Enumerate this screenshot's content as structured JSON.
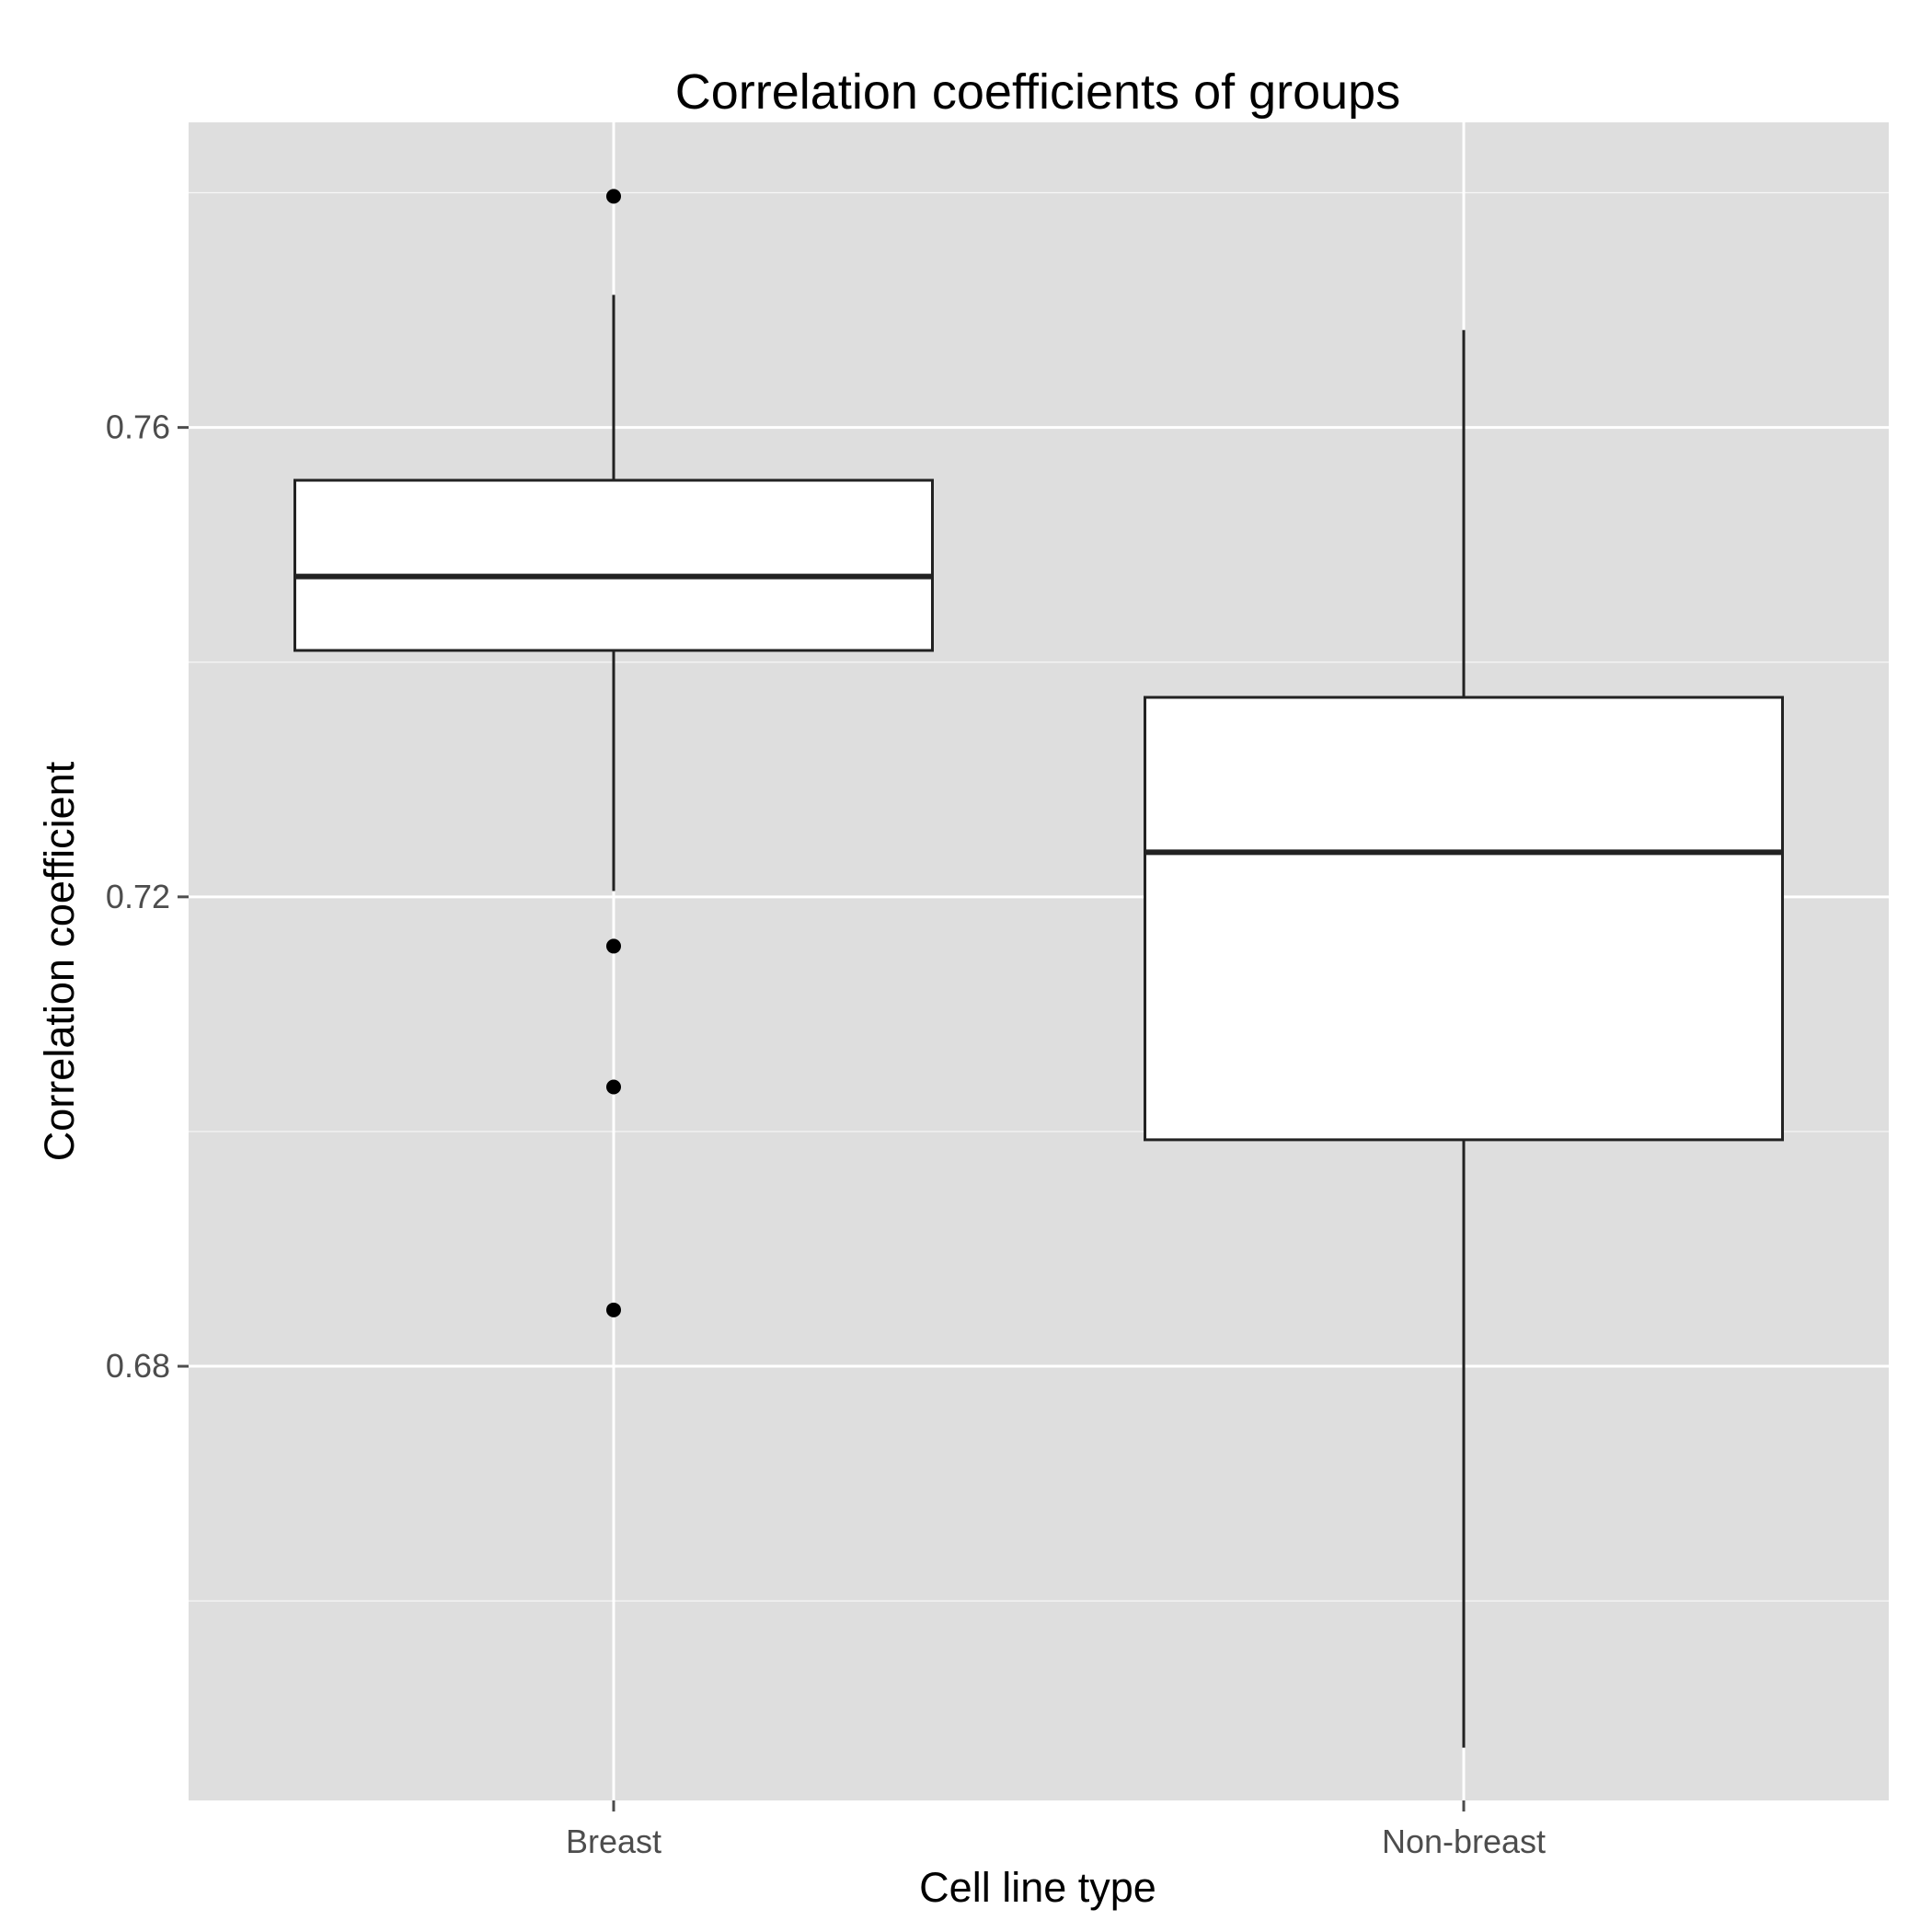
{
  "chart_data": {
    "type": "boxplot",
    "title": "Correlation coefficients of groups",
    "xlabel": "Cell line type",
    "ylabel": "Correlation coefficient",
    "ylim": [
      0.643,
      0.786
    ],
    "y_ticks": [
      0.68,
      0.72,
      0.76
    ],
    "y_tick_labels": [
      "0.68",
      "0.72",
      "0.76"
    ],
    "y_minor_gridlines": [
      0.66,
      0.7,
      0.74,
      0.78
    ],
    "categories": [
      "Breast",
      "Non-breast"
    ],
    "boxes": [
      {
        "category": "Breast",
        "whisker_low": 0.7205,
        "q1": 0.741,
        "median": 0.7473,
        "q3": 0.7555,
        "whisker_high": 0.7713,
        "outliers": [
          0.7797,
          0.7158,
          0.7038,
          0.6848
        ]
      },
      {
        "category": "Non-breast",
        "whisker_low": 0.6475,
        "q1": 0.6993,
        "median": 0.7238,
        "q3": 0.737,
        "whisker_high": 0.7683,
        "outliers": []
      }
    ],
    "grid": true,
    "legend": "none",
    "colors": {
      "panel": "#dedede",
      "gridline": "#ffffff",
      "box_fill": "#ffffff",
      "box_stroke": "#222222",
      "point": "#000000",
      "tick": "#4d4d4d"
    }
  }
}
